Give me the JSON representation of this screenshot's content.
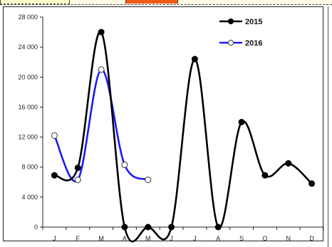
{
  "chart_data": {
    "type": "line",
    "categories": [
      "J",
      "F",
      "M",
      "A",
      "M",
      "J",
      "J",
      "A",
      "S",
      "O",
      "N",
      "D"
    ],
    "ylim": [
      0,
      28000
    ],
    "y_ticks": [
      0,
      4000,
      8000,
      12000,
      16000,
      20000,
      24000,
      28000
    ],
    "y_tick_labels": [
      "0",
      "4 000",
      "8 000",
      "12 000",
      "16 000",
      "20 000",
      "24 000",
      "28 000"
    ],
    "grid": false,
    "legend_position": "top-right",
    "series": [
      {
        "name": "2016",
        "color": "#1a1aff",
        "marker": "open-circle",
        "values": [
          12200,
          6300,
          21000,
          8300,
          6300,
          null,
          null,
          null,
          null,
          null,
          null,
          null
        ]
      },
      {
        "name": "2015",
        "color": "#000000",
        "marker": "filled-circle",
        "values": [
          6900,
          7900,
          26000,
          0,
          0,
          0,
          22400,
          0,
          14000,
          6900,
          8500,
          5800
        ]
      }
    ]
  }
}
